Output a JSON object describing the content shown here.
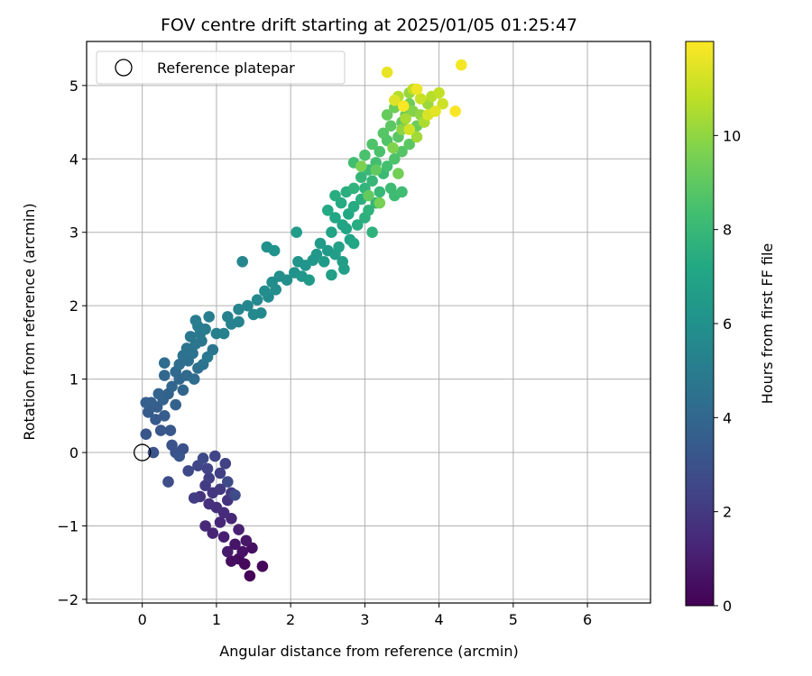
{
  "chart_data": {
    "type": "scatter",
    "title": "FOV centre drift starting at 2025/01/05 01:25:47",
    "xlabel": "Angular distance from reference (arcmin)",
    "ylabel": "Rotation from reference (arcmin)",
    "xlim": [
      -0.75,
      6.85
    ],
    "ylim": [
      -2.05,
      5.6
    ],
    "xticks": [
      0,
      1,
      2,
      3,
      4,
      5,
      6
    ],
    "yticks": [
      -2,
      -1,
      0,
      1,
      2,
      3,
      4,
      5
    ],
    "grid": true,
    "legend": {
      "placement": "top-left",
      "entries": [
        "Reference platepar"
      ]
    },
    "reference_point": {
      "x": 0,
      "y": 0
    },
    "colorbar": {
      "label": "Hours from first FF file",
      "colormap": "viridis",
      "range": [
        0,
        12
      ],
      "ticks": [
        0,
        2,
        4,
        6,
        8,
        10
      ]
    },
    "colors": {
      "viridis": [
        "#440154",
        "#482475",
        "#414487",
        "#355f8d",
        "#2a788e",
        "#21918c",
        "#22a884",
        "#44bf70",
        "#7ad151",
        "#bddf26",
        "#fde725"
      ]
    },
    "series": [
      {
        "points": [
          [
            1.45,
            -1.68,
            0.1
          ],
          [
            1.62,
            -1.55,
            0.2
          ],
          [
            1.38,
            -1.52,
            0.3
          ],
          [
            1.3,
            -1.45,
            0.35
          ],
          [
            1.2,
            -1.48,
            0.45
          ],
          [
            1.48,
            -1.3,
            0.5
          ],
          [
            1.35,
            -1.35,
            0.6
          ],
          [
            1.25,
            -1.25,
            0.7
          ],
          [
            1.4,
            -1.2,
            0.8
          ],
          [
            1.15,
            -1.35,
            0.9
          ],
          [
            1.1,
            -1.15,
            1.0
          ],
          [
            1.3,
            -1.05,
            1.1
          ],
          [
            0.95,
            -1.1,
            1.2
          ],
          [
            1.05,
            -0.95,
            1.3
          ],
          [
            1.2,
            -0.9,
            1.35
          ],
          [
            0.85,
            -1.0,
            1.4
          ],
          [
            1.1,
            -0.82,
            1.5
          ],
          [
            1.0,
            -0.75,
            1.6
          ],
          [
            0.9,
            -0.7,
            1.7
          ],
          [
            1.15,
            -0.65,
            1.75
          ],
          [
            0.78,
            -0.6,
            1.8
          ],
          [
            0.95,
            -0.55,
            1.9
          ],
          [
            1.05,
            -0.5,
            2.0
          ],
          [
            0.85,
            -0.45,
            2.05
          ],
          [
            1.2,
            -0.55,
            2.1
          ],
          [
            0.7,
            -0.62,
            2.15
          ],
          [
            0.9,
            -0.35,
            2.2
          ],
          [
            1.05,
            -0.28,
            2.3
          ],
          [
            1.12,
            -0.15,
            2.35
          ],
          [
            0.88,
            -0.22,
            2.4
          ],
          [
            0.98,
            -0.05,
            2.45
          ],
          [
            0.75,
            -0.18,
            2.5
          ],
          [
            0.62,
            -0.25,
            2.6
          ],
          [
            1.15,
            -0.4,
            2.65
          ],
          [
            0.82,
            -0.08,
            2.7
          ],
          [
            1.25,
            -0.58,
            2.75
          ],
          [
            0.35,
            -0.4,
            2.85
          ],
          [
            0.55,
            0.05,
            2.95
          ],
          [
            0.45,
            0.0,
            3.0
          ],
          [
            0.15,
            0.0,
            3.05
          ],
          [
            0.4,
            0.1,
            3.1
          ],
          [
            0.5,
            -0.05,
            3.15
          ],
          [
            0.05,
            0.25,
            3.2
          ],
          [
            0.25,
            0.3,
            3.25
          ],
          [
            0.38,
            0.3,
            3.3
          ],
          [
            0.18,
            0.45,
            3.4
          ],
          [
            0.08,
            0.55,
            3.45
          ],
          [
            0.3,
            0.5,
            3.5
          ],
          [
            0.2,
            0.62,
            3.55
          ],
          [
            0.12,
            0.68,
            3.6
          ],
          [
            0.05,
            0.68,
            3.65
          ],
          [
            0.28,
            0.72,
            3.7
          ],
          [
            0.45,
            0.65,
            3.75
          ],
          [
            0.35,
            0.8,
            3.8
          ],
          [
            0.22,
            0.8,
            3.85
          ],
          [
            0.55,
            0.85,
            3.9
          ],
          [
            0.4,
            0.9,
            3.95
          ],
          [
            0.5,
            1.0,
            4.0
          ],
          [
            0.3,
            1.05,
            4.05
          ],
          [
            0.45,
            1.1,
            4.1
          ],
          [
            0.6,
            1.05,
            4.15
          ],
          [
            0.7,
            1.0,
            4.2
          ],
          [
            0.3,
            1.22,
            4.25
          ],
          [
            0.5,
            1.2,
            4.3
          ],
          [
            0.62,
            1.25,
            4.35
          ],
          [
            0.75,
            1.15,
            4.4
          ],
          [
            0.55,
            1.32,
            4.45
          ],
          [
            0.68,
            1.35,
            4.5
          ],
          [
            0.82,
            1.2,
            4.55
          ],
          [
            0.6,
            1.42,
            4.6
          ],
          [
            0.72,
            1.48,
            4.65
          ],
          [
            0.95,
            1.4,
            4.7
          ],
          [
            0.8,
            1.52,
            4.75
          ],
          [
            0.65,
            1.58,
            4.8
          ],
          [
            0.78,
            1.62,
            4.85
          ],
          [
            0.88,
            1.3,
            4.9
          ],
          [
            0.75,
            1.72,
            4.95
          ],
          [
            0.85,
            1.68,
            5.0
          ],
          [
            0.72,
            1.8,
            5.05
          ],
          [
            0.9,
            1.85,
            5.1
          ],
          [
            1.0,
            1.62,
            5.15
          ],
          [
            1.1,
            1.62,
            5.2
          ],
          [
            1.15,
            1.85,
            5.25
          ],
          [
            1.2,
            1.75,
            5.3
          ],
          [
            1.3,
            1.78,
            5.35
          ],
          [
            1.3,
            1.95,
            5.4
          ],
          [
            1.42,
            2.0,
            5.45
          ],
          [
            1.35,
            2.6,
            5.5
          ],
          [
            1.5,
            1.88,
            5.55
          ],
          [
            1.6,
            1.9,
            5.6
          ],
          [
            1.55,
            2.08,
            5.65
          ],
          [
            1.7,
            2.12,
            5.7
          ],
          [
            1.65,
            2.2,
            5.75
          ],
          [
            1.8,
            2.22,
            5.8
          ],
          [
            1.75,
            2.32,
            5.85
          ],
          [
            1.85,
            2.4,
            5.9
          ],
          [
            1.95,
            2.35,
            5.95
          ],
          [
            1.68,
            2.8,
            6.0
          ],
          [
            1.78,
            2.75,
            6.05
          ],
          [
            2.05,
            2.45,
            6.1
          ],
          [
            2.1,
            2.6,
            6.15
          ],
          [
            2.2,
            2.55,
            6.2
          ],
          [
            2.15,
            2.4,
            6.25
          ],
          [
            2.3,
            2.62,
            6.3
          ],
          [
            2.35,
            2.7,
            6.35
          ],
          [
            2.25,
            2.35,
            6.4
          ],
          [
            2.45,
            2.6,
            6.45
          ],
          [
            2.5,
            2.75,
            6.5
          ],
          [
            2.08,
            3.0,
            6.55
          ],
          [
            2.4,
            2.85,
            6.6
          ],
          [
            2.6,
            2.7,
            6.65
          ],
          [
            2.7,
            2.6,
            6.7
          ],
          [
            2.55,
            2.42,
            6.75
          ],
          [
            2.72,
            2.5,
            6.8
          ],
          [
            2.65,
            2.8,
            6.85
          ],
          [
            2.8,
            2.9,
            6.9
          ],
          [
            2.55,
            3.0,
            6.95
          ],
          [
            2.7,
            3.1,
            7.0
          ],
          [
            2.75,
            3.05,
            7.05
          ],
          [
            2.85,
            2.85,
            7.1
          ],
          [
            2.6,
            3.2,
            7.15
          ],
          [
            2.78,
            3.25,
            7.2
          ],
          [
            2.5,
            3.3,
            7.25
          ],
          [
            2.68,
            3.4,
            7.3
          ],
          [
            2.85,
            3.35,
            7.35
          ],
          [
            2.9,
            3.1,
            7.4
          ],
          [
            2.6,
            3.5,
            7.45
          ],
          [
            2.75,
            3.55,
            7.5
          ],
          [
            2.95,
            3.45,
            7.55
          ],
          [
            3.0,
            3.2,
            7.6
          ],
          [
            3.1,
            3.0,
            7.65
          ],
          [
            3.05,
            3.3,
            7.7
          ],
          [
            2.85,
            3.6,
            7.75
          ],
          [
            3.0,
            3.6,
            7.8
          ],
          [
            3.15,
            3.4,
            7.85
          ],
          [
            2.95,
            3.75,
            7.9
          ],
          [
            3.1,
            3.7,
            7.95
          ],
          [
            3.2,
            3.55,
            8.0
          ],
          [
            3.05,
            3.85,
            8.05
          ],
          [
            3.25,
            3.8,
            8.1
          ],
          [
            3.35,
            3.6,
            8.15
          ],
          [
            3.4,
            3.5,
            8.2
          ],
          [
            3.5,
            3.55,
            8.25
          ],
          [
            2.85,
            3.95,
            8.3
          ],
          [
            3.15,
            3.95,
            8.35
          ],
          [
            3.3,
            3.9,
            8.4
          ],
          [
            3.0,
            4.05,
            8.5
          ],
          [
            3.2,
            4.1,
            8.55
          ],
          [
            3.4,
            4.0,
            8.6
          ],
          [
            3.1,
            4.2,
            8.65
          ],
          [
            3.3,
            4.25,
            8.7
          ],
          [
            3.5,
            4.1,
            8.75
          ],
          [
            3.25,
            4.35,
            8.8
          ],
          [
            3.45,
            4.3,
            8.85
          ],
          [
            3.6,
            4.2,
            8.9
          ],
          [
            3.35,
            4.45,
            8.95
          ],
          [
            3.5,
            4.5,
            9.0
          ],
          [
            3.15,
            3.85,
            9.05
          ],
          [
            3.05,
            3.5,
            9.1
          ],
          [
            3.3,
            4.6,
            9.15
          ],
          [
            3.55,
            4.6,
            9.2
          ],
          [
            3.7,
            4.45,
            9.25
          ],
          [
            3.4,
            4.7,
            9.3
          ],
          [
            3.6,
            4.75,
            9.35
          ],
          [
            3.45,
            3.8,
            9.4
          ],
          [
            3.2,
            3.4,
            9.5
          ],
          [
            2.95,
            3.9,
            9.6
          ],
          [
            3.38,
            4.15,
            9.7
          ],
          [
            3.65,
            4.65,
            9.8
          ],
          [
            3.5,
            4.4,
            9.9
          ],
          [
            3.75,
            4.6,
            10.0
          ],
          [
            3.6,
            4.9,
            10.1
          ],
          [
            3.85,
            4.75,
            10.2
          ],
          [
            3.7,
            4.3,
            10.3
          ],
          [
            3.55,
            4.55,
            10.4
          ],
          [
            3.8,
            4.5,
            10.5
          ],
          [
            3.45,
            4.85,
            10.6
          ],
          [
            3.9,
            4.85,
            10.7
          ],
          [
            3.65,
            4.95,
            10.8
          ],
          [
            4.0,
            4.9,
            10.9
          ],
          [
            3.75,
            4.82,
            11.0
          ],
          [
            4.05,
            4.75,
            11.1
          ],
          [
            3.6,
            4.4,
            11.2
          ],
          [
            3.85,
            4.6,
            11.3
          ],
          [
            3.4,
            4.8,
            11.4
          ],
          [
            3.95,
            4.65,
            11.5
          ],
          [
            3.3,
            5.18,
            11.6
          ],
          [
            3.7,
            4.95,
            11.7
          ],
          [
            4.3,
            5.28,
            11.8
          ],
          [
            4.22,
            4.65,
            11.9
          ],
          [
            3.52,
            4.72,
            12.0
          ]
        ]
      }
    ]
  }
}
